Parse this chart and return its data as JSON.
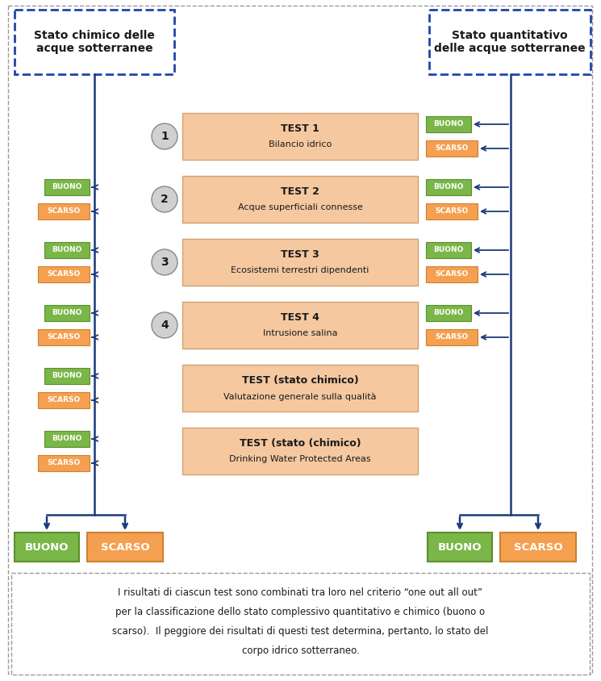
{
  "fig_width": 7.45,
  "fig_height": 8.44,
  "bg_color": "#f0f0ea",
  "outer_border_color": "#888888",
  "header_border_color": "#2244aa",
  "test_box_color": "#f5c8a0",
  "test_box_edge": "#d4a070",
  "buono_color": "#7ab648",
  "buono_edge": "#5a9030",
  "scarso_color": "#f5a050",
  "scarso_edge": "#d08030",
  "arrow_color": "#1a3a7a",
  "circle_fill": "#d0d0d0",
  "circle_edge": "#888888",
  "text_color": "#1a1a1a",
  "header_left": "Stato chimico delle\nacque sotterranee",
  "header_right": "Stato quantitativo\ndelle acque sotterranee",
  "tests": [
    {
      "num": "1",
      "line1": "TEST 1",
      "line2": "Bilancio idrico",
      "has_left": false,
      "has_right": true
    },
    {
      "num": "2",
      "line1": "TEST 2",
      "line2": "Acque superficiali connesse",
      "has_left": true,
      "has_right": true
    },
    {
      "num": "3",
      "line1": "TEST 3",
      "line2": "Ecosistemi terrestri dipendenti",
      "has_left": true,
      "has_right": true
    },
    {
      "num": "4",
      "line1": "TEST 4",
      "line2": "Intrusione salina",
      "has_left": true,
      "has_right": true
    },
    {
      "num": "",
      "line1": "TEST (stato chimico)",
      "line2": "Valutazione generale sulla qualità",
      "has_left": true,
      "has_right": false
    },
    {
      "num": "",
      "line1": "TEST (stato (chimico)",
      "line2": "Drinking Water Protected Areas",
      "has_left": true,
      "has_right": false
    }
  ],
  "footer_line1": "I risultati di ciascun test sono combinati tra loro nel criterio “one out all out”",
  "footer_line2": "per la classificazione dello stato complessivo quantitativo e chimico (buono o",
  "footer_line3": "scarso).  Il peggiore dei risultati di questi test determina, pertanto, lo stato del",
  "footer_line4": "corpo idrico sotterraneo."
}
